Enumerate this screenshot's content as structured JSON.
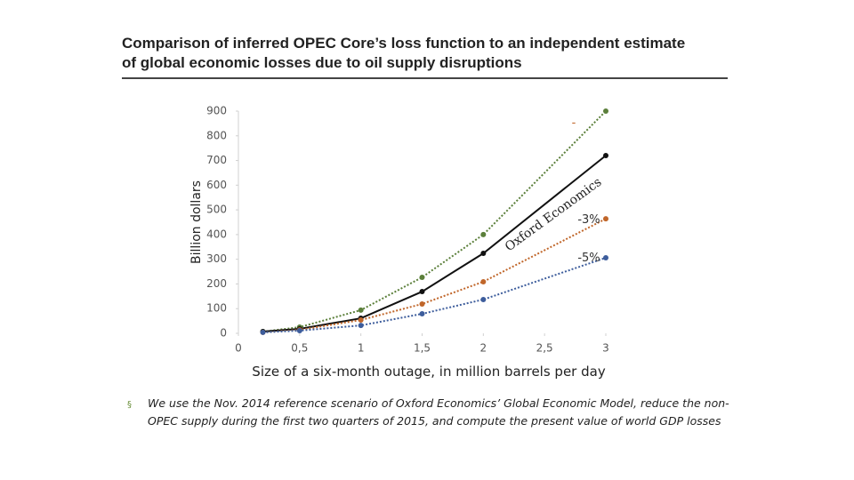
{
  "chart_data": {
    "type": "line",
    "title": [
      "Comparison of inferred OPEC Core’s loss function to an independent estimate",
      "of global economic losses due to oil supply disruptions"
    ],
    "x_label": "Size of a six-month outage, in million barrels per day",
    "y_label": "Billion dollars",
    "x": [
      0.2,
      0.5,
      1,
      1.5,
      2,
      3
    ],
    "series": [
      {
        "color": "#5b7f3a",
        "style": "dotted",
        "values": [
          7,
          25,
          94,
          227,
          400,
          900
        ]
      },
      {
        "name": "Oxford Economics",
        "color": "#111111",
        "style": "solid",
        "values": [
          7,
          18,
          61,
          169,
          324,
          720
        ]
      },
      {
        "name": "-3%",
        "color": "#c0662a",
        "style": "dotted",
        "values": [
          4,
          14,
          54,
          119,
          209,
          464
        ]
      },
      {
        "name": "-5%",
        "color": "#3d5d9c",
        "style": "dotted",
        "values": [
          4,
          11,
          32,
          79,
          137,
          306
        ]
      }
    ],
    "annotations": [
      "-"
    ],
    "xlim": [
      0,
      3
    ],
    "xticks": [
      0,
      {
        "value": 0.5,
        "label": "0,5"
      },
      1,
      {
        "value": 1.5,
        "label": "1,5"
      },
      2,
      {
        "value": 2.5,
        "label": "2,5"
      },
      3
    ],
    "ylim": [
      0,
      900
    ],
    "yticks": [
      0,
      100,
      200,
      300,
      400,
      500,
      600,
      700,
      800,
      900
    ]
  },
  "footnote": {
    "bullet": "§",
    "lines": [
      "We use the Nov. 2014 reference scenario of Oxford Economics’ Global Economic Model, reduce the non-",
      "OPEC supply during the first two quarters of 2015, and compute the present value of world GDP losses"
    ]
  }
}
